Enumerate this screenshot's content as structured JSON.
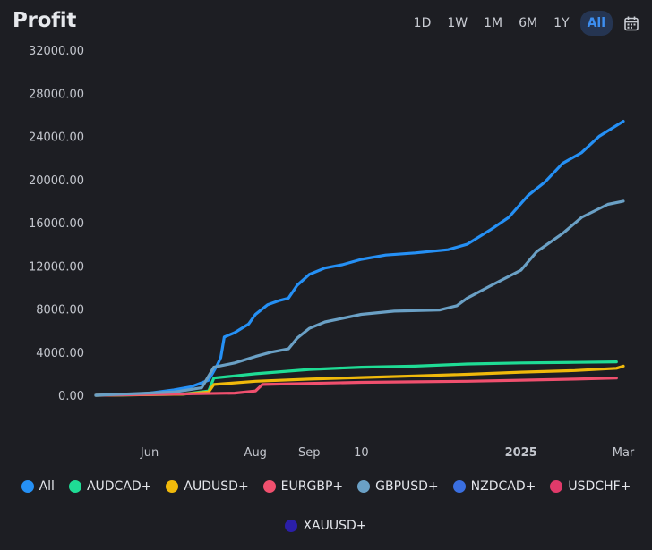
{
  "header": {
    "title": "Profit",
    "ranges": [
      {
        "label": "1D",
        "active": false
      },
      {
        "label": "1W",
        "active": false
      },
      {
        "label": "1M",
        "active": false
      },
      {
        "label": "6M",
        "active": false
      },
      {
        "label": "1Y",
        "active": false
      },
      {
        "label": "All",
        "active": true
      }
    ],
    "calendar_icon": "calendar-icon"
  },
  "colors": {
    "accent": "#3d8ef0",
    "background": "#1d1e23",
    "grid": "#2a2c33",
    "axis_text": "#c3c6cd"
  },
  "chart_data": {
    "type": "line",
    "title": "Profit",
    "ylim": [
      0,
      32000
    ],
    "yticks": [
      "32000.00",
      "28000.00",
      "24000.00",
      "20000.00",
      "16000.00",
      "12000.00",
      "8000.00",
      "4000.00",
      "0.00"
    ],
    "ytick_values": [
      32000,
      28000,
      24000,
      20000,
      16000,
      12000,
      8000,
      4000,
      0
    ],
    "xlim": [
      "2024-05-01",
      "2025-03-01"
    ],
    "xticks": [
      {
        "label": "Jun",
        "date": "2024-06-01"
      },
      {
        "label": "Aug",
        "date": "2024-08-01"
      },
      {
        "label": "Sep",
        "date": "2024-09-01"
      },
      {
        "label": "10",
        "date": "2024-10-01"
      },
      {
        "label": "2025",
        "date": "2025-01-01"
      },
      {
        "label": "Mar",
        "date": "2025-03-01"
      }
    ],
    "grid": false,
    "legend_position": "bottom",
    "series": [
      {
        "name": "All",
        "color": "#2590f5",
        "points": [
          [
            "2024-05-01",
            0
          ],
          [
            "2024-05-20",
            50
          ],
          [
            "2024-06-01",
            200
          ],
          [
            "2024-06-15",
            500
          ],
          [
            "2024-06-25",
            800
          ],
          [
            "2024-07-05",
            1400
          ],
          [
            "2024-07-10",
            2800
          ],
          [
            "2024-07-12",
            3500
          ],
          [
            "2024-07-14",
            5400
          ],
          [
            "2024-07-20",
            5800
          ],
          [
            "2024-07-28",
            6600
          ],
          [
            "2024-08-01",
            7500
          ],
          [
            "2024-08-08",
            8400
          ],
          [
            "2024-08-15",
            8800
          ],
          [
            "2024-08-20",
            9000
          ],
          [
            "2024-08-25",
            10200
          ],
          [
            "2024-09-01",
            11200
          ],
          [
            "2024-09-10",
            11800
          ],
          [
            "2024-09-20",
            12100
          ],
          [
            "2024-10-01",
            12600
          ],
          [
            "2024-10-15",
            13000
          ],
          [
            "2024-11-01",
            13200
          ],
          [
            "2024-11-20",
            13500
          ],
          [
            "2024-12-01",
            14000
          ],
          [
            "2024-12-15",
            15400
          ],
          [
            "2024-12-25",
            16500
          ],
          [
            "2025-01-05",
            18500
          ],
          [
            "2025-01-15",
            19800
          ],
          [
            "2025-01-25",
            21500
          ],
          [
            "2025-02-05",
            22500
          ],
          [
            "2025-02-15",
            24000
          ],
          [
            "2025-02-25",
            25000
          ],
          [
            "2025-03-01",
            25400
          ]
        ]
      },
      {
        "name": "AUDCAD+",
        "color": "#1fdc95",
        "points": [
          [
            "2024-05-01",
            0
          ],
          [
            "2024-06-20",
            100
          ],
          [
            "2024-07-05",
            400
          ],
          [
            "2024-07-08",
            1600
          ],
          [
            "2024-07-20",
            1800
          ],
          [
            "2024-08-01",
            2000
          ],
          [
            "2024-09-01",
            2400
          ],
          [
            "2024-10-01",
            2600
          ],
          [
            "2024-11-01",
            2700
          ],
          [
            "2024-12-01",
            2900
          ],
          [
            "2025-01-01",
            3000
          ],
          [
            "2025-02-01",
            3050
          ],
          [
            "2025-02-25",
            3100
          ]
        ]
      },
      {
        "name": "AUDUSD+",
        "color": "#f0b90b",
        "points": [
          [
            "2024-05-01",
            0
          ],
          [
            "2024-06-20",
            100
          ],
          [
            "2024-07-05",
            300
          ],
          [
            "2024-07-08",
            1000
          ],
          [
            "2024-08-01",
            1300
          ],
          [
            "2024-09-01",
            1500
          ],
          [
            "2024-10-01",
            1650
          ],
          [
            "2024-11-01",
            1800
          ],
          [
            "2024-12-01",
            1950
          ],
          [
            "2025-01-01",
            2150
          ],
          [
            "2025-02-01",
            2300
          ],
          [
            "2025-02-25",
            2500
          ],
          [
            "2025-03-01",
            2700
          ]
        ]
      },
      {
        "name": "EURGBP+",
        "color": "#f0506e",
        "points": [
          [
            "2024-05-01",
            0
          ],
          [
            "2024-07-20",
            200
          ],
          [
            "2024-08-01",
            400
          ],
          [
            "2024-08-05",
            1000
          ],
          [
            "2024-09-01",
            1100
          ],
          [
            "2024-10-01",
            1200
          ],
          [
            "2024-11-01",
            1250
          ],
          [
            "2024-12-01",
            1300
          ],
          [
            "2025-01-01",
            1400
          ],
          [
            "2025-02-01",
            1500
          ],
          [
            "2025-02-25",
            1600
          ]
        ]
      },
      {
        "name": "GBPUSD+",
        "color": "#6aa0c5",
        "points": [
          [
            "2024-05-01",
            0
          ],
          [
            "2024-06-15",
            300
          ],
          [
            "2024-07-01",
            700
          ],
          [
            "2024-07-08",
            2600
          ],
          [
            "2024-07-20",
            3000
          ],
          [
            "2024-08-01",
            3600
          ],
          [
            "2024-08-10",
            4000
          ],
          [
            "2024-08-20",
            4300
          ],
          [
            "2024-08-25",
            5300
          ],
          [
            "2024-09-01",
            6200
          ],
          [
            "2024-09-10",
            6800
          ],
          [
            "2024-10-01",
            7500
          ],
          [
            "2024-10-20",
            7800
          ],
          [
            "2024-11-15",
            7900
          ],
          [
            "2024-11-25",
            8300
          ],
          [
            "2024-12-01",
            9000
          ],
          [
            "2024-12-15",
            10200
          ],
          [
            "2025-01-01",
            11600
          ],
          [
            "2025-01-10",
            13300
          ],
          [
            "2025-01-25",
            15000
          ],
          [
            "2025-02-05",
            16500
          ],
          [
            "2025-02-20",
            17700
          ],
          [
            "2025-03-01",
            18000
          ]
        ]
      },
      {
        "name": "NZDCAD+",
        "color": "#3a6fe0",
        "points": []
      },
      {
        "name": "USDCHF+",
        "color": "#e03a6a",
        "points": []
      },
      {
        "name": "XAUUSD+",
        "color": "#2b1fa8",
        "points": []
      }
    ]
  }
}
